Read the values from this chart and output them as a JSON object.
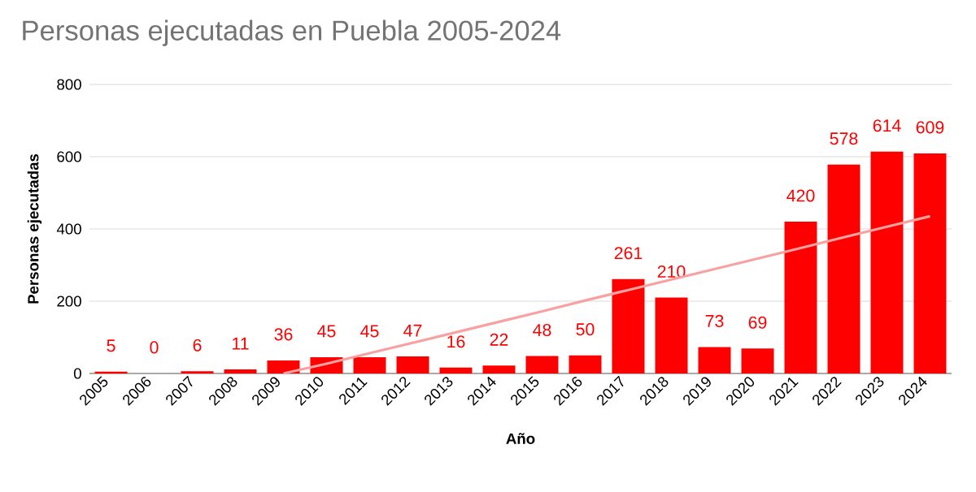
{
  "chart_data": {
    "type": "bar",
    "title": "Personas ejecutadas en Puebla 2005-2024",
    "xlabel": "Año",
    "ylabel": "Personas ejecutadas",
    "categories": [
      "2005",
      "2006",
      "2007",
      "2008",
      "2009",
      "2010",
      "2011",
      "2012",
      "2013",
      "2014",
      "2015",
      "2016",
      "2017",
      "2018",
      "2019",
      "2020",
      "2021",
      "2022",
      "2023",
      "2024"
    ],
    "series": [
      {
        "color": "#ff0000",
        "values": [
          5,
          0,
          6,
          11,
          36,
          45,
          45,
          47,
          16,
          22,
          48,
          50,
          261,
          210,
          73,
          69,
          420,
          578,
          614,
          609
        ],
        "value_labels": [
          "5",
          "0",
          "6",
          "11",
          "36",
          "45",
          "45",
          "47",
          "16",
          "22",
          "48",
          "50",
          "261",
          "210",
          "73",
          "69",
          "420",
          "578",
          "614",
          "609"
        ]
      },
      {
        "type": "line",
        "color": "#f7a1a1",
        "values": [
          null,
          null,
          null,
          null,
          0,
          27,
          56,
          85,
          114,
          143,
          172,
          202,
          231,
          260,
          289,
          318,
          347,
          377,
          406,
          435
        ]
      }
    ],
    "ylim": [
      0,
      800
    ],
    "yticks": [
      0,
      200,
      400,
      600,
      800
    ],
    "grid": "y"
  }
}
